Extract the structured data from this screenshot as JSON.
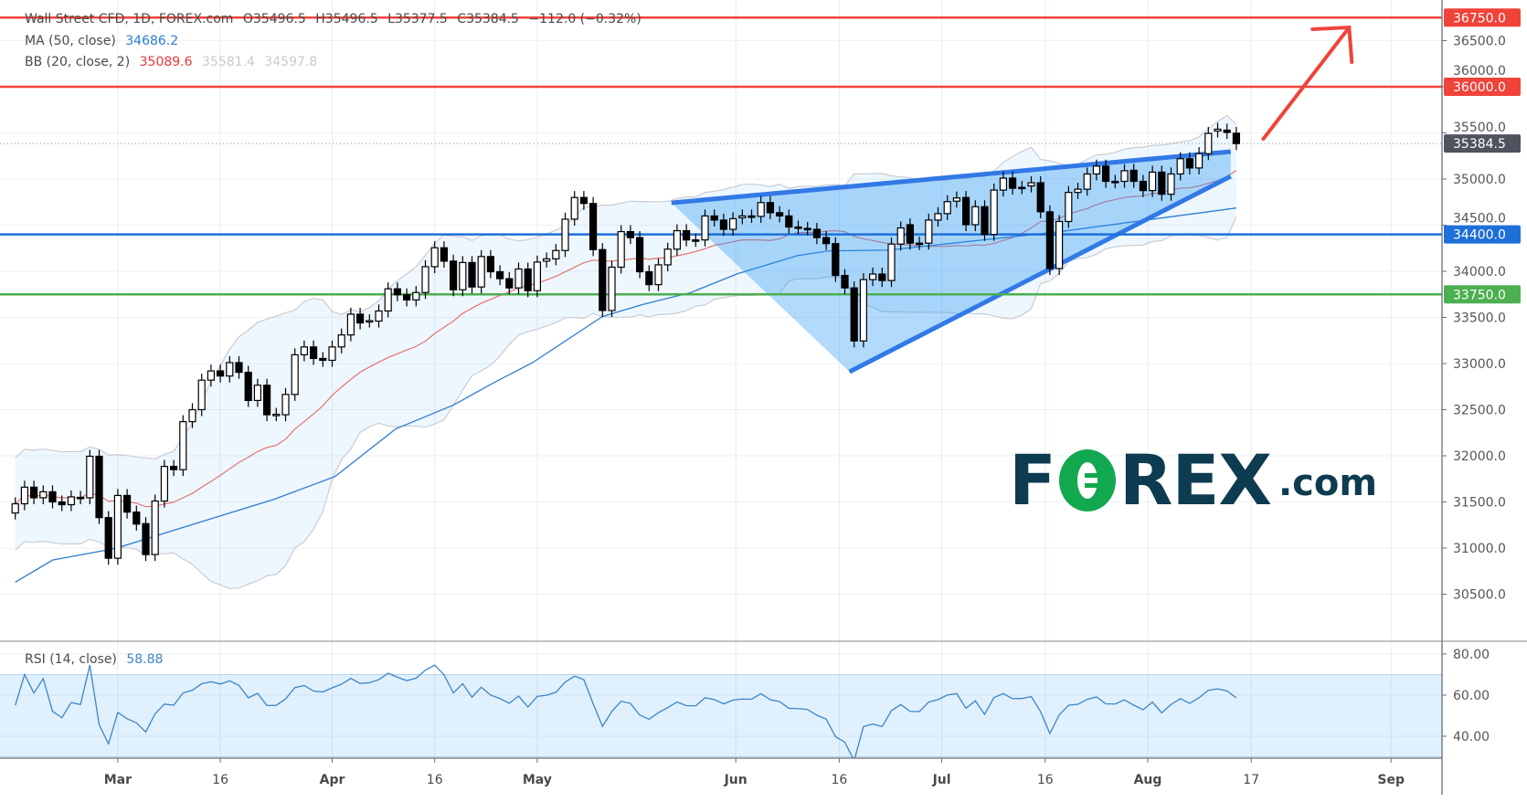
{
  "legend": {
    "symbol": "Wall Street CFD, 1D, FOREX.com",
    "open": "O35496.5",
    "high": "H35496.5",
    "low": "L35377.5",
    "close": "C35384.5",
    "change": "−112.0 (−0.32%)",
    "ma_label": "MA (50, close)",
    "ma_value": "34686.2",
    "bb_label": "BB (20, close, 2)",
    "bb_basis": "35089.6",
    "bb_upper": "35581.4",
    "bb_lower": "34597.8",
    "rsi_label": "RSI (14, close)",
    "rsi_value": "58.88"
  },
  "logo": {
    "prefix": "F",
    "letter_o": "O",
    "middle": "REX",
    "suffix": ".com"
  },
  "colors": {
    "resistance": "#f0433a",
    "support_blue": "#1e6fd9",
    "support_green": "#4caf50",
    "last_price": "#50535e",
    "ma": "#2e7dd1",
    "bb_basis": "#e57373",
    "rsi": "#3d85c6",
    "wedge": "#2196f3"
  },
  "chart_data": {
    "type": "candlestick",
    "title": "Wall Street CFD, 1D, FOREX.com",
    "x_unit": "bar index (daily)",
    "ylim": [
      30000,
      36900
    ],
    "y_ticks": [
      "30500.0",
      "31000.0",
      "31500.0",
      "32000.0",
      "32500.0",
      "33000.0",
      "33500.0",
      "34000.0",
      "34500.0",
      "35000.0",
      "35500.0",
      "36000.0",
      "36500.0"
    ],
    "y_tick_values": [
      30500,
      31000,
      31500,
      32000,
      32500,
      33000,
      33500,
      34000,
      34500,
      35000,
      35500,
      36000,
      36500
    ],
    "x_ticks": [
      {
        "label": "Mar",
        "bar": 11,
        "bold": true
      },
      {
        "label": "16",
        "bar": 22,
        "bold": false
      },
      {
        "label": "Apr",
        "bar": 34,
        "bold": true
      },
      {
        "label": "16",
        "bar": 45,
        "bold": false
      },
      {
        "label": "May",
        "bar": 56,
        "bold": true
      },
      {
        "label": "Jun",
        "bar": 77.3,
        "bold": true
      },
      {
        "label": "16",
        "bar": 88.4,
        "bold": false
      },
      {
        "label": "Jul",
        "bar": 99.4,
        "bold": true
      },
      {
        "label": "16",
        "bar": 110.5,
        "bold": false
      },
      {
        "label": "Aug",
        "bar": 121.5,
        "bold": true
      },
      {
        "label": "17",
        "bar": 132.6,
        "bold": false
      },
      {
        "label": "Sep",
        "bar": 147.6,
        "bold": true
      }
    ],
    "candles_open_close": [
      [
        31380,
        31480
      ],
      [
        31480,
        31660
      ],
      [
        31660,
        31545
      ],
      [
        31545,
        31610
      ],
      [
        31610,
        31500
      ],
      [
        31500,
        31470
      ],
      [
        31470,
        31555
      ],
      [
        31550,
        31545
      ],
      [
        31545,
        31995
      ],
      [
        31995,
        31330
      ],
      [
        31330,
        30890
      ],
      [
        30890,
        31570
      ],
      [
        31570,
        31390
      ],
      [
        31390,
        31260
      ],
      [
        31265,
        30930
      ],
      [
        30930,
        31510
      ],
      [
        31510,
        31885
      ],
      [
        31885,
        31850
      ],
      [
        31850,
        32370
      ],
      [
        32370,
        32500
      ],
      [
        32500,
        32820
      ],
      [
        32820,
        32920
      ],
      [
        32920,
        32865
      ],
      [
        32865,
        33010
      ],
      [
        33010,
        32905
      ],
      [
        32905,
        32600
      ],
      [
        32600,
        32765
      ],
      [
        32765,
        32445
      ],
      [
        32445,
        32450
      ],
      [
        32445,
        32665
      ],
      [
        32665,
        33095
      ],
      [
        33095,
        33180
      ],
      [
        33180,
        33055
      ],
      [
        33055,
        33035
      ],
      [
        33035,
        33180
      ],
      [
        33180,
        33310
      ],
      [
        33310,
        33535
      ],
      [
        33535,
        33440
      ],
      [
        33460,
        33465
      ],
      [
        33460,
        33570
      ],
      [
        33570,
        33810
      ],
      [
        33810,
        33745
      ],
      [
        33745,
        33690
      ],
      [
        33690,
        33770
      ],
      [
        33770,
        34050
      ],
      [
        34050,
        34255
      ],
      [
        34255,
        34110
      ],
      [
        34110,
        33800
      ],
      [
        33800,
        34095
      ],
      [
        34095,
        33830
      ],
      [
        33830,
        34160
      ],
      [
        34160,
        33995
      ],
      [
        33995,
        33920
      ],
      [
        33920,
        33820
      ],
      [
        33820,
        34025
      ],
      [
        34025,
        33790
      ],
      [
        33790,
        34100
      ],
      [
        34110,
        34135
      ],
      [
        34135,
        34225
      ],
      [
        34225,
        34565
      ],
      [
        34565,
        34800
      ],
      [
        34800,
        34735
      ],
      [
        34735,
        34235
      ],
      [
        34235,
        33575
      ],
      [
        33575,
        34045
      ],
      [
        34045,
        34430
      ],
      [
        34430,
        34365
      ],
      [
        34365,
        33995
      ],
      [
        33995,
        33855
      ],
      [
        33855,
        34070
      ],
      [
        34070,
        34240
      ],
      [
        34240,
        34440
      ],
      [
        34440,
        34340
      ],
      [
        34340,
        34335
      ],
      [
        34340,
        34600
      ],
      [
        34600,
        34555
      ],
      [
        34555,
        34455
      ],
      [
        34455,
        34570
      ],
      [
        34580,
        34600
      ],
      [
        34600,
        34595
      ],
      [
        34595,
        34745
      ],
      [
        34745,
        34635
      ],
      [
        34635,
        34600
      ],
      [
        34600,
        34480
      ],
      [
        34480,
        34475
      ],
      [
        34465,
        34460
      ],
      [
        34455,
        34365
      ],
      [
        34365,
        34300
      ],
      [
        34300,
        33955
      ],
      [
        33955,
        33820
      ],
      [
        33820,
        33245
      ],
      [
        33245,
        33910
      ],
      [
        33910,
        33970
      ],
      [
        33970,
        33900
      ],
      [
        33900,
        34295
      ],
      [
        34295,
        34470
      ],
      [
        34505,
        34305
      ],
      [
        34305,
        34300
      ],
      [
        34305,
        34555
      ],
      [
        34555,
        34625
      ],
      [
        34625,
        34755
      ],
      [
        34760,
        34795
      ],
      [
        34800,
        34505
      ],
      [
        34505,
        34700
      ],
      [
        34700,
        34400
      ],
      [
        34400,
        34880
      ],
      [
        34880,
        35010
      ],
      [
        35010,
        34900
      ],
      [
        34910,
        34905
      ],
      [
        34925,
        34960
      ],
      [
        34960,
        34645
      ],
      [
        34645,
        34030
      ],
      [
        34030,
        34540
      ],
      [
        34540,
        34855
      ],
      [
        34855,
        34890
      ],
      [
        34890,
        35055
      ],
      [
        35055,
        35140
      ],
      [
        35140,
        34975
      ],
      [
        34975,
        34970
      ],
      [
        34975,
        35090
      ],
      [
        35095,
        34975
      ],
      [
        34975,
        34875
      ],
      [
        34875,
        35075
      ],
      [
        35075,
        34835
      ],
      [
        34835,
        35055
      ],
      [
        35055,
        35220
      ],
      [
        35220,
        35120
      ],
      [
        35120,
        35275
      ],
      [
        35275,
        35495
      ],
      [
        35520,
        35540
      ],
      [
        35530,
        35505
      ],
      [
        35496.5,
        35384.5
      ]
    ],
    "ma50_points": [
      [
        0,
        30630
      ],
      [
        4,
        30870
      ],
      [
        10.7,
        30995
      ],
      [
        27.8,
        31530
      ],
      [
        34.3,
        31775
      ],
      [
        40.8,
        32290
      ],
      [
        47,
        32550
      ],
      [
        51.3,
        32790
      ],
      [
        55.5,
        33010
      ],
      [
        63,
        33510
      ],
      [
        67.3,
        33640
      ],
      [
        72.5,
        33770
      ],
      [
        77.4,
        33970
      ],
      [
        83.9,
        34170
      ],
      [
        87.2,
        34220
      ],
      [
        93.7,
        34230
      ],
      [
        112.1,
        34430
      ],
      [
        131,
        34686.2
      ]
    ],
    "horizontal_levels": [
      {
        "value": 36750,
        "label": "36750.0",
        "kind": "resistance"
      },
      {
        "value": 36000,
        "label": "36000.0",
        "kind": "resistance"
      },
      {
        "value": 34400,
        "label": "34400.0",
        "kind": "support_blue"
      },
      {
        "value": 33750,
        "label": "33750.0",
        "kind": "support_green"
      }
    ],
    "last_price": {
      "value": 35384.5,
      "label": "35384.5"
    },
    "wedge": {
      "upper": [
        [
          70.4,
          34742
        ],
        [
          130.4,
          35297
        ]
      ],
      "lower": [
        [
          89.5,
          32911
        ],
        [
          130.4,
          35030
        ]
      ]
    },
    "arrow": {
      "from": [
        133.9,
        35435
      ],
      "to": [
        143.1,
        36643
      ]
    },
    "rsi": {
      "ylim": [
        26,
        84
      ],
      "ticks": [
        "80.00",
        "60.00",
        "40.00"
      ],
      "tick_values": [
        80,
        60,
        40
      ],
      "band": [
        30,
        70
      ],
      "last": 58.88
    }
  }
}
